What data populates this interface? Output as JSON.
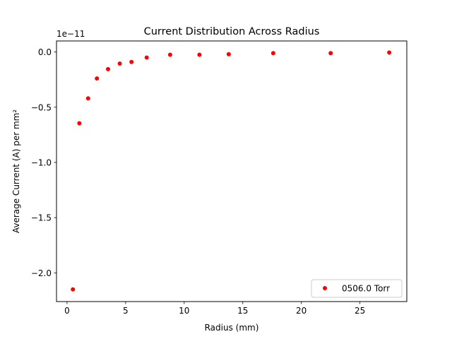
{
  "chart_data": {
    "type": "scatter",
    "title": "Current Distribution Across Radius",
    "xlabel": "Radius (mm)",
    "ylabel": "Average Current (A) per mm²",
    "y_offset_label": "1e−11",
    "y_scale_exponent": -11,
    "xlim": [
      -0.9,
      29.0
    ],
    "ylim": [
      -2.26e-11,
      1e-12
    ],
    "x_ticks": [
      0,
      5,
      10,
      15,
      20,
      25
    ],
    "x_tick_labels": [
      "0",
      "5",
      "10",
      "15",
      "20",
      "25"
    ],
    "y_ticks": [
      0.0,
      -5e-12,
      -1e-11,
      -1.5e-11,
      -2e-11
    ],
    "y_tick_labels": [
      "0.0",
      "−0.5",
      "−1.0",
      "−1.5",
      "−2.0"
    ],
    "grid": false,
    "legend_position": "bottom-right",
    "series": [
      {
        "name": "0506.0 Torr",
        "color": "#ff0000",
        "marker": "circle",
        "x": [
          0.5,
          1.05,
          1.8,
          2.55,
          3.5,
          4.5,
          5.5,
          6.8,
          8.8,
          11.3,
          13.8,
          17.6,
          22.5,
          27.5
        ],
        "y": [
          -2.15e-11,
          -6.45e-12,
          -4.2e-12,
          -2.4e-12,
          -1.55e-12,
          -1.05e-12,
          -9e-13,
          -5e-13,
          -2.5e-13,
          -2.5e-13,
          -2e-13,
          -1e-13,
          -1e-13,
          -5e-14
        ]
      }
    ]
  }
}
